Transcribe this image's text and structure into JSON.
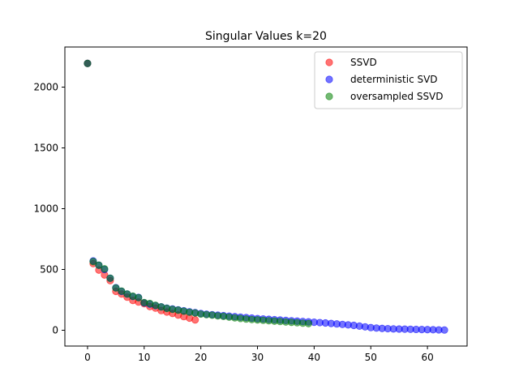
{
  "chart_data": {
    "type": "scatter",
    "title": "Singular Values k=20",
    "xlabel": "",
    "ylabel": "",
    "xlim": [
      -4,
      67
    ],
    "ylim": [
      -130,
      2330
    ],
    "xticks": [
      0,
      10,
      20,
      30,
      40,
      50,
      60
    ],
    "yticks": [
      0,
      500,
      1000,
      1500,
      2000
    ],
    "grid": false,
    "legend_position": "top-right",
    "alpha": 0.55,
    "series": [
      {
        "name": "SSVD",
        "color": "#ff0000",
        "x": [
          0,
          1,
          2,
          3,
          4,
          5,
          6,
          7,
          8,
          9,
          10,
          11,
          12,
          13,
          14,
          15,
          16,
          17,
          18,
          19
        ],
        "y": [
          2195,
          548,
          495,
          455,
          408,
          320,
          298,
          272,
          245,
          232,
          218,
          195,
          182,
          162,
          150,
          138,
          125,
          112,
          100,
          85
        ]
      },
      {
        "name": "deterministic SVD",
        "color": "#0000ff",
        "x": [
          0,
          1,
          2,
          3,
          4,
          5,
          6,
          7,
          8,
          9,
          10,
          11,
          12,
          13,
          14,
          15,
          16,
          17,
          18,
          19,
          20,
          21,
          22,
          23,
          24,
          25,
          26,
          27,
          28,
          29,
          30,
          31,
          32,
          33,
          34,
          35,
          36,
          37,
          38,
          39,
          40,
          41,
          42,
          43,
          44,
          45,
          46,
          47,
          48,
          49,
          50,
          51,
          52,
          53,
          54,
          55,
          56,
          57,
          58,
          59,
          60,
          61,
          62,
          63
        ],
        "y": [
          2195,
          570,
          535,
          500,
          428,
          350,
          320,
          298,
          278,
          270,
          225,
          215,
          203,
          193,
          182,
          175,
          168,
          160,
          152,
          145,
          138,
          132,
          128,
          124,
          120,
          116,
          112,
          108,
          104,
          100,
          96,
          93,
          90,
          87,
          84,
          81,
          78,
          75,
          72,
          69,
          66,
          63,
          60,
          56,
          52,
          48,
          44,
          40,
          34,
          28,
          22,
          18,
          15,
          13,
          11,
          10,
          9,
          8,
          7,
          6,
          5,
          4,
          3,
          2
        ]
      },
      {
        "name": "oversampled SSVD",
        "color": "#008000",
        "x": [
          0,
          1,
          2,
          3,
          4,
          5,
          6,
          7,
          8,
          9,
          10,
          11,
          12,
          13,
          14,
          15,
          16,
          17,
          18,
          19,
          20,
          21,
          22,
          23,
          24,
          25,
          26,
          27,
          28,
          29,
          30,
          31,
          32,
          33,
          34,
          35,
          36,
          37,
          38,
          39
        ],
        "y": [
          2195,
          565,
          535,
          505,
          428,
          348,
          322,
          298,
          280,
          268,
          228,
          220,
          205,
          192,
          180,
          172,
          165,
          157,
          148,
          142,
          133,
          128,
          124,
          118,
          114,
          108,
          102,
          97,
          92,
          88,
          85,
          82,
          78,
          75,
          72,
          68,
          65,
          62,
          58,
          55
        ]
      }
    ]
  }
}
